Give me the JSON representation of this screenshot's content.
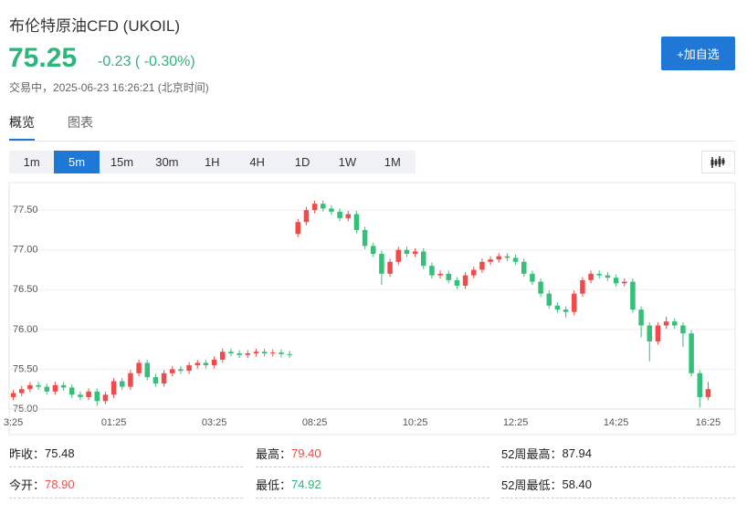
{
  "header": {
    "title": "布伦特原油CFD (UKOIL)",
    "price": "75.25",
    "change": "-0.23 ( -0.30%)",
    "status": "交易中，2025-06-23 16:26:21 (北京时间)",
    "price_color": "#2db57b"
  },
  "button": "+加自选",
  "tabs": [
    "概览",
    "图表"
  ],
  "timeframes": [
    "1m",
    "5m",
    "15m",
    "30m",
    "1H",
    "4H",
    "1D",
    "1W",
    "1M"
  ],
  "active_timeframe": "5m",
  "stats": [
    {
      "label": "昨收：",
      "value": "75.48",
      "color": "#222222"
    },
    {
      "label": "最高：",
      "value": "79.40",
      "color": "#ef4b4b"
    },
    {
      "label": "52周最高：",
      "value": "87.94",
      "color": "#222222"
    },
    {
      "label": "今开：",
      "value": "78.90",
      "color": "#ef4b4b"
    },
    {
      "label": "最低：",
      "value": "74.92",
      "color": "#2db57b"
    },
    {
      "label": "52周最低：",
      "value": "58.40",
      "color": "#222222"
    }
  ],
  "chart_data": {
    "type": "candlestick",
    "up_color": "#f04a4a",
    "down_color": "#35c07a",
    "grid": true,
    "ylim": [
      75.0,
      77.8
    ],
    "yticks": [
      {
        "value": 75.0,
        "label": "75.00"
      },
      {
        "value": 75.5,
        "label": "75.50"
      },
      {
        "value": 76.0,
        "label": "76.00"
      },
      {
        "value": 76.5,
        "label": "76.50"
      },
      {
        "value": 77.0,
        "label": "77.00"
      },
      {
        "value": 77.5,
        "label": "77.50"
      }
    ],
    "categories": [
      "3:25",
      null,
      null,
      null,
      null,
      null,
      null,
      null,
      null,
      null,
      null,
      null,
      "01:25",
      null,
      null,
      null,
      null,
      null,
      null,
      null,
      null,
      null,
      null,
      null,
      "03:25",
      null,
      null,
      null,
      null,
      null,
      null,
      null,
      null,
      null,
      null,
      null,
      "08:25",
      null,
      null,
      null,
      null,
      null,
      null,
      null,
      null,
      null,
      null,
      null,
      "10:25",
      null,
      null,
      null,
      null,
      null,
      null,
      null,
      null,
      null,
      null,
      null,
      "12:25",
      null,
      null,
      null,
      null,
      null,
      null,
      null,
      null,
      null,
      null,
      null,
      "14:25",
      null,
      null,
      null,
      null,
      null,
      null,
      null,
      null,
      null,
      null,
      "16:25"
    ],
    "open": [
      75.15,
      75.2,
      75.25,
      75.3,
      75.28,
      75.22,
      75.3,
      75.27,
      75.18,
      75.15,
      75.22,
      75.1,
      75.18,
      75.35,
      75.28,
      75.45,
      75.58,
      75.4,
      75.32,
      75.45,
      75.5,
      75.48,
      75.55,
      75.58,
      75.55,
      75.62,
      75.72,
      75.7,
      75.68,
      75.7,
      75.72,
      75.7,
      75.71,
      75.69,
      77.2,
      77.35,
      77.5,
      77.58,
      77.52,
      77.48,
      77.4,
      77.45,
      77.25,
      77.05,
      76.95,
      76.7,
      76.85,
      77.0,
      76.95,
      76.98,
      76.8,
      76.68,
      76.7,
      76.62,
      76.55,
      76.68,
      76.75,
      76.85,
      76.88,
      76.92,
      76.9,
      76.85,
      76.7,
      76.6,
      76.45,
      76.3,
      76.25,
      76.22,
      76.45,
      76.62,
      76.7,
      76.68,
      76.65,
      76.58,
      76.6,
      76.25,
      76.05,
      75.85,
      76.05,
      76.1,
      76.05,
      75.95,
      75.45,
      75.15
    ],
    "high": [
      75.24,
      75.29,
      75.34,
      75.34,
      75.32,
      75.34,
      75.34,
      75.31,
      75.22,
      75.26,
      75.26,
      75.22,
      75.39,
      75.39,
      75.49,
      75.62,
      75.62,
      75.44,
      75.49,
      75.54,
      75.54,
      75.59,
      75.62,
      75.62,
      75.66,
      75.76,
      75.76,
      75.74,
      75.74,
      75.76,
      75.76,
      75.75,
      75.75,
      75.73,
      77.39,
      77.54,
      77.62,
      77.62,
      77.56,
      77.52,
      77.49,
      77.49,
      77.29,
      77.09,
      76.99,
      76.89,
      77.04,
      77.04,
      77.02,
      77.02,
      76.84,
      76.74,
      76.74,
      76.66,
      76.72,
      76.79,
      76.89,
      76.92,
      76.96,
      76.96,
      76.94,
      76.89,
      76.74,
      76.64,
      76.49,
      76.34,
      76.29,
      76.49,
      76.66,
      76.74,
      76.74,
      76.72,
      76.69,
      76.64,
      76.64,
      76.29,
      76.09,
      76.09,
      76.16,
      76.14,
      76.09,
      75.99,
      75.49,
      75.34
    ],
    "low": [
      75.11,
      75.16,
      75.21,
      75.24,
      75.18,
      75.18,
      75.23,
      75.14,
      75.11,
      75.11,
      75.04,
      75.06,
      75.14,
      75.24,
      75.24,
      75.41,
      75.36,
      75.28,
      75.28,
      75.41,
      75.44,
      75.44,
      75.51,
      75.51,
      75.51,
      75.58,
      75.66,
      75.64,
      75.64,
      75.66,
      75.66,
      75.66,
      75.65,
      75.64,
      77.16,
      77.31,
      77.46,
      77.48,
      77.44,
      77.36,
      77.36,
      77.21,
      77.01,
      76.91,
      76.56,
      76.66,
      76.81,
      76.91,
      76.91,
      76.76,
      76.64,
      76.64,
      76.58,
      76.51,
      76.51,
      76.64,
      76.71,
      76.81,
      76.84,
      76.86,
      76.81,
      76.66,
      76.56,
      76.41,
      76.26,
      76.21,
      76.15,
      76.18,
      76.41,
      76.58,
      76.64,
      76.61,
      76.54,
      76.54,
      76.21,
      75.9,
      75.6,
      75.81,
      76.01,
      76.01,
      75.78,
      75.41,
      75.02,
      75.11
    ],
    "close": [
      75.2,
      75.25,
      75.3,
      75.28,
      75.22,
      75.3,
      75.27,
      75.18,
      75.15,
      75.22,
      75.1,
      75.18,
      75.35,
      75.28,
      75.45,
      75.58,
      75.4,
      75.32,
      75.45,
      75.5,
      75.48,
      75.55,
      75.58,
      75.55,
      75.62,
      75.72,
      75.7,
      75.68,
      75.7,
      75.72,
      75.7,
      75.71,
      75.69,
      75.68,
      77.35,
      77.5,
      77.58,
      77.52,
      77.48,
      77.4,
      77.45,
      77.25,
      77.05,
      76.95,
      76.7,
      76.85,
      77.0,
      76.95,
      76.98,
      76.8,
      76.68,
      76.7,
      76.62,
      76.55,
      76.68,
      76.75,
      76.85,
      76.88,
      76.92,
      76.9,
      76.85,
      76.7,
      76.6,
      76.45,
      76.3,
      76.25,
      76.22,
      76.45,
      76.62,
      76.7,
      76.68,
      76.65,
      76.58,
      76.6,
      76.25,
      76.05,
      75.85,
      76.05,
      76.1,
      76.05,
      75.95,
      75.45,
      75.15,
      75.25
    ]
  }
}
